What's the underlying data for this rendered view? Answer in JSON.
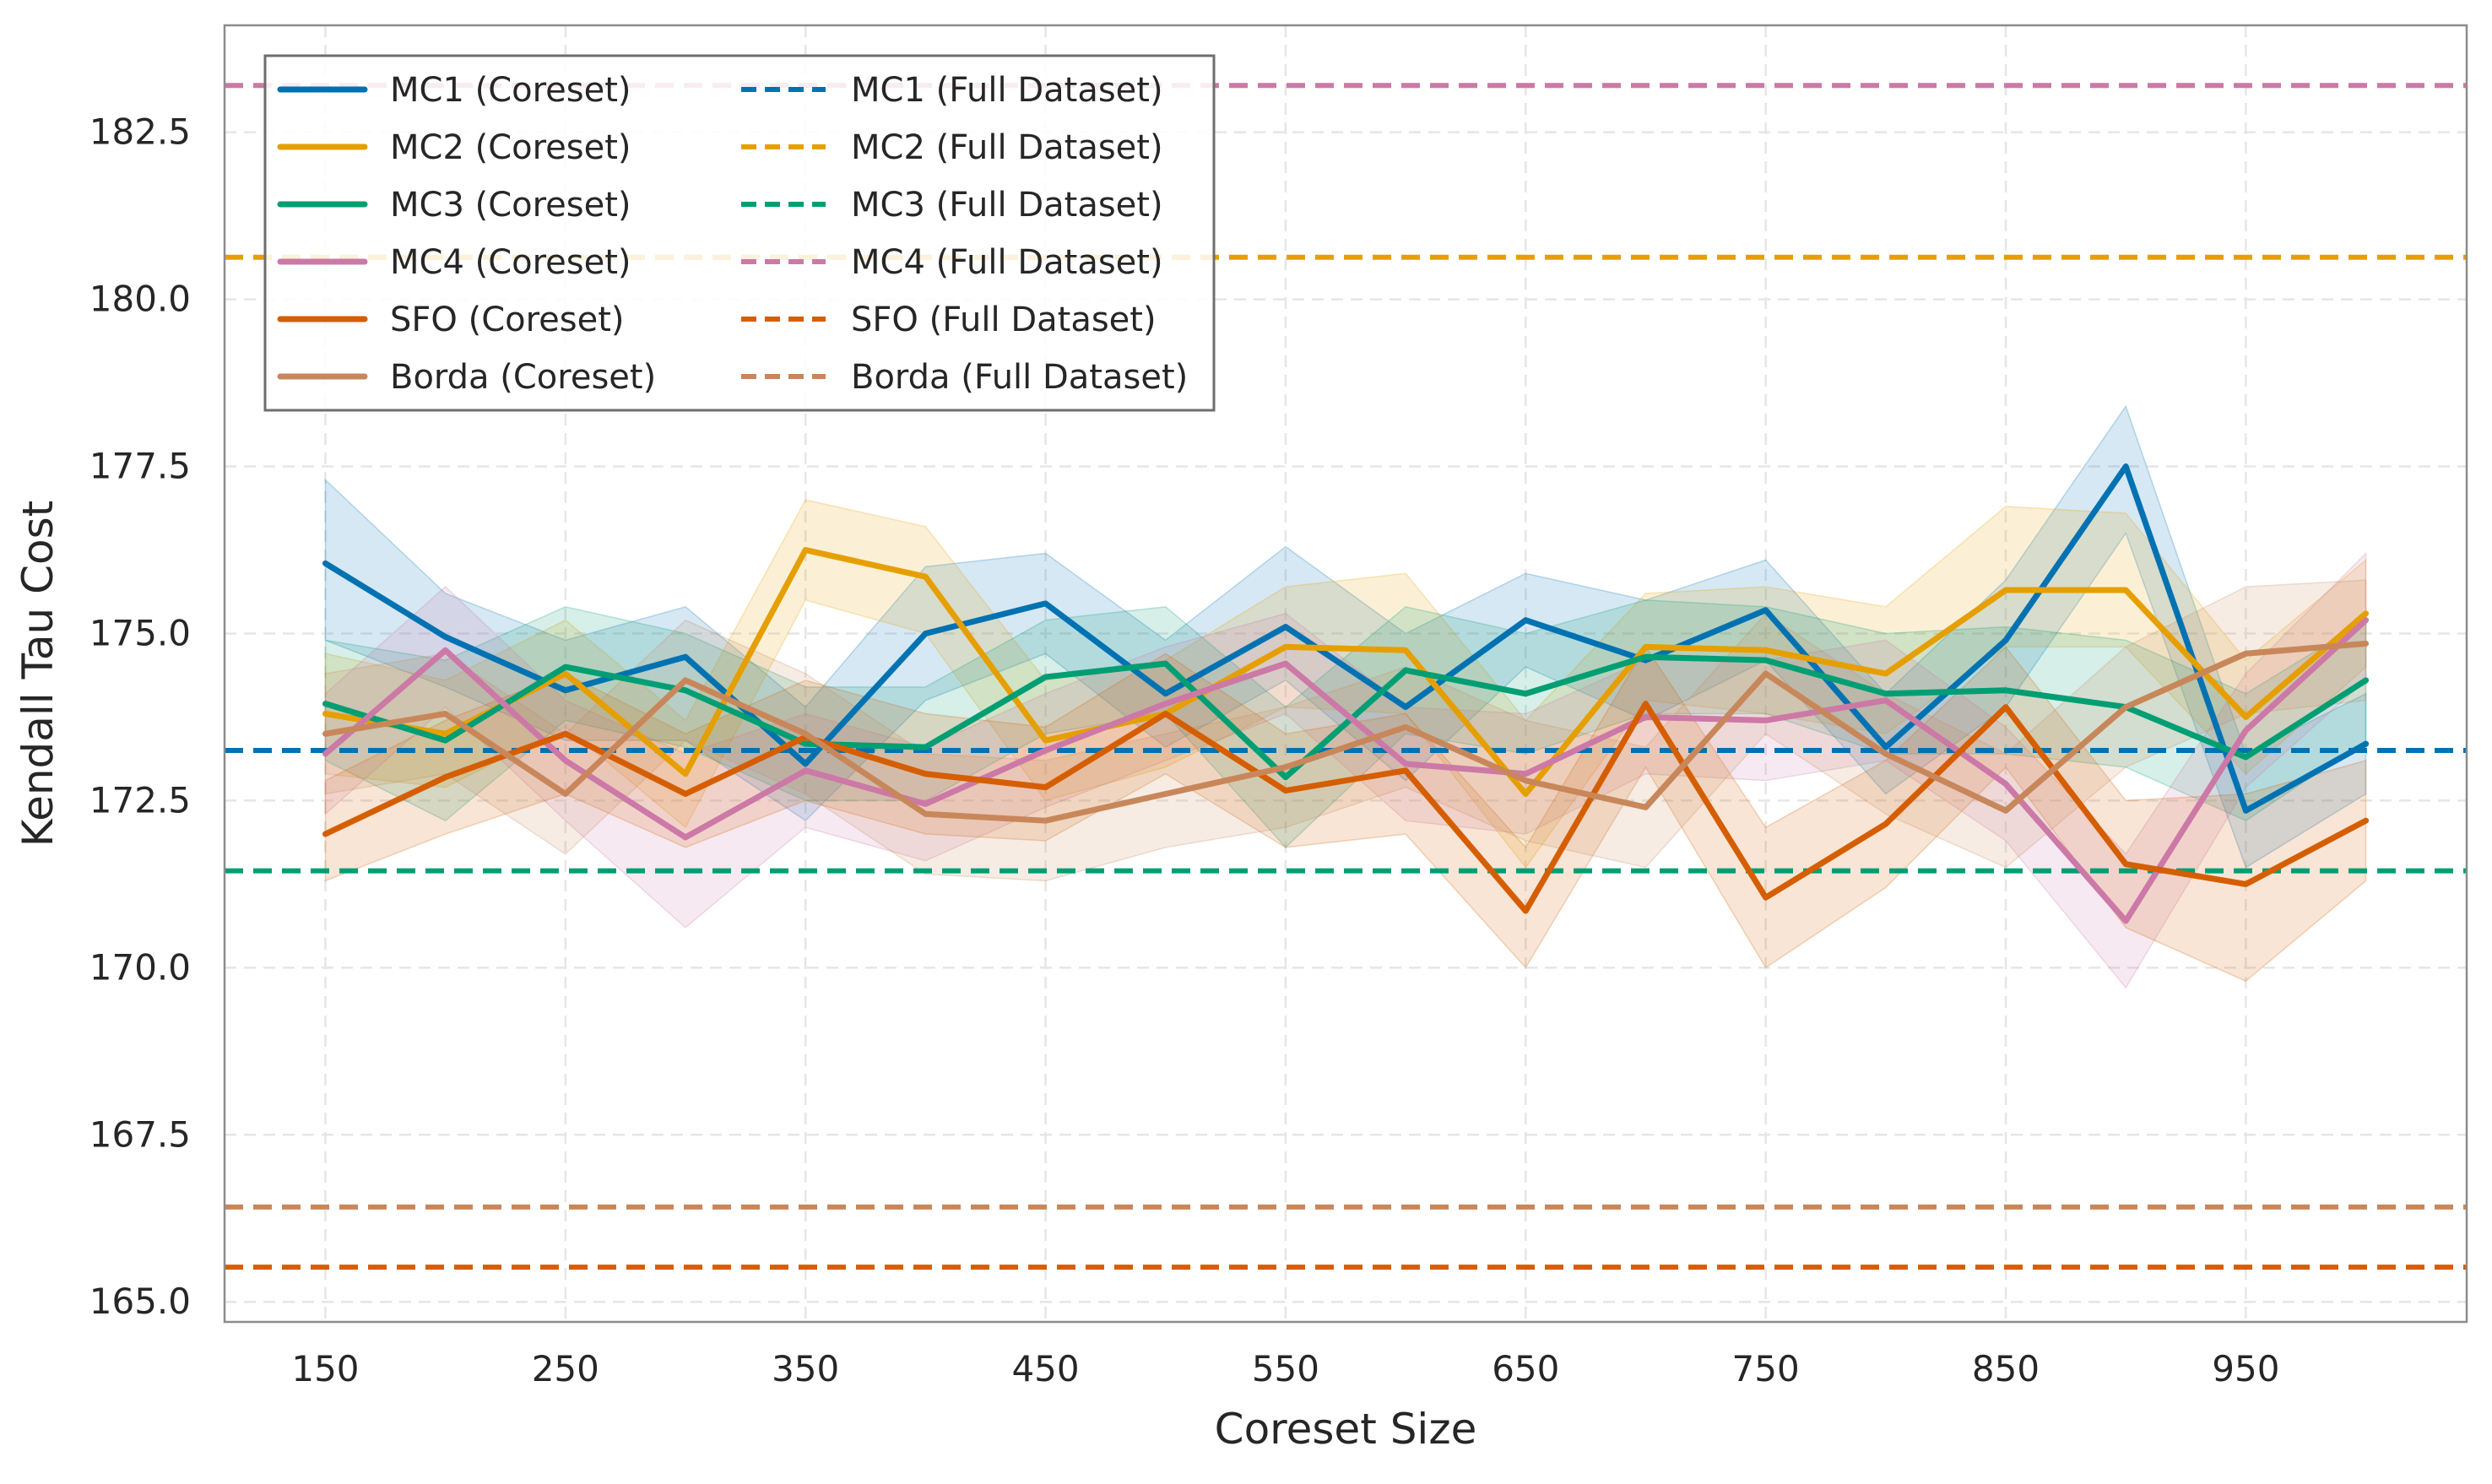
{
  "chart_data": {
    "type": "line",
    "title": "",
    "xlabel": "Coreset Size",
    "ylabel": "Kendall Tau Cost",
    "xlim": [
      108,
      1042
    ],
    "ylim": [
      164.7,
      184.1
    ],
    "xticks": [
      "150",
      "250",
      "350",
      "450",
      "550",
      "650",
      "750",
      "850",
      "950"
    ],
    "yticks": [
      "165.0",
      "167.5",
      "170.0",
      "172.5",
      "175.0",
      "177.5",
      "180.0",
      "182.5"
    ],
    "grid": true,
    "legend_position": "top-left",
    "x": [
      150,
      200,
      250,
      300,
      350,
      400,
      450,
      500,
      550,
      600,
      650,
      700,
      750,
      800,
      850,
      900,
      950,
      1000
    ],
    "series": [
      {
        "name": "MC1 (Coreset)",
        "color": "#0072b2",
        "values": [
          176.05,
          174.95,
          174.15,
          174.65,
          173.05,
          175.0,
          175.45,
          174.1,
          175.1,
          173.9,
          175.2,
          174.6,
          175.35,
          173.3,
          174.9,
          177.5,
          172.35,
          173.35
        ],
        "lower": [
          174.9,
          174.2,
          173.4,
          173.4,
          172.2,
          174.0,
          174.7,
          173.3,
          174.3,
          172.8,
          174.5,
          173.7,
          174.6,
          172.6,
          173.9,
          176.5,
          171.5,
          172.6
        ],
        "upper": [
          177.3,
          175.6,
          174.9,
          175.4,
          173.9,
          176.0,
          176.2,
          174.9,
          176.3,
          175.0,
          175.9,
          175.5,
          176.1,
          174.1,
          175.8,
          178.4,
          173.2,
          174.1
        ]
      },
      {
        "name": "MC2 (Coreset)",
        "color": "#e69f00",
        "values": [
          173.8,
          173.5,
          174.4,
          172.9,
          176.25,
          175.85,
          173.4,
          173.8,
          174.8,
          174.75,
          172.6,
          174.8,
          174.75,
          174.4,
          175.65,
          175.65,
          173.75,
          175.3
        ],
        "lower": [
          172.9,
          172.7,
          173.6,
          172.1,
          175.5,
          175.0,
          172.5,
          173.0,
          173.9,
          173.8,
          171.5,
          174.0,
          173.8,
          173.5,
          174.8,
          174.8,
          172.9,
          174.5
        ],
        "upper": [
          174.7,
          174.3,
          175.2,
          173.7,
          177.0,
          176.6,
          174.3,
          174.6,
          175.7,
          175.9,
          173.7,
          175.6,
          175.7,
          175.4,
          176.9,
          176.8,
          174.6,
          176.1
        ]
      },
      {
        "name": "MC3 (Coreset)",
        "color": "#009e73",
        "values": [
          173.95,
          173.4,
          174.5,
          174.15,
          173.35,
          173.3,
          174.35,
          174.55,
          172.85,
          174.45,
          174.1,
          174.65,
          174.6,
          174.1,
          174.15,
          173.9,
          173.15,
          174.3
        ],
        "lower": [
          173.1,
          172.2,
          173.7,
          173.3,
          172.5,
          172.5,
          173.5,
          173.8,
          171.8,
          173.5,
          173.2,
          173.8,
          173.8,
          173.2,
          173.2,
          173.0,
          172.2,
          173.4
        ],
        "upper": [
          174.9,
          174.6,
          175.4,
          175.0,
          174.2,
          174.2,
          175.2,
          175.4,
          173.9,
          175.4,
          175.0,
          175.5,
          175.4,
          175.0,
          175.1,
          174.9,
          174.1,
          175.2
        ]
      },
      {
        "name": "MC4 (Coreset)",
        "color": "#cc79a7",
        "values": [
          173.2,
          174.75,
          173.1,
          171.95,
          172.95,
          172.45,
          173.25,
          173.95,
          174.55,
          173.05,
          172.9,
          173.75,
          173.7,
          174.0,
          172.75,
          170.7,
          173.55,
          175.2
        ],
        "lower": [
          172.3,
          173.9,
          172.2,
          170.6,
          172.1,
          171.6,
          172.4,
          173.1,
          173.8,
          172.2,
          172.0,
          172.9,
          172.8,
          173.1,
          171.9,
          169.7,
          172.7,
          174.3
        ],
        "upper": [
          174.1,
          175.7,
          174.0,
          173.2,
          173.8,
          173.3,
          174.1,
          174.8,
          175.3,
          173.9,
          173.8,
          174.6,
          174.6,
          174.9,
          173.6,
          171.7,
          174.4,
          176.2
        ]
      },
      {
        "name": "SFO (Coreset)",
        "color": "#d55e00",
        "values": [
          172.0,
          172.85,
          173.5,
          172.6,
          173.45,
          172.9,
          172.7,
          173.8,
          172.65,
          172.95,
          170.85,
          173.95,
          171.05,
          172.15,
          173.9,
          171.55,
          171.25,
          172.2
        ],
        "lower": [
          171.3,
          172.0,
          172.6,
          171.8,
          172.5,
          172.0,
          171.9,
          172.9,
          171.8,
          172.0,
          170.0,
          173.0,
          170.0,
          171.2,
          173.0,
          170.6,
          169.8,
          171.3
        ],
        "upper": [
          172.8,
          173.7,
          174.4,
          173.5,
          174.3,
          173.8,
          173.6,
          174.7,
          173.5,
          173.8,
          171.8,
          174.8,
          172.1,
          173.1,
          174.8,
          172.5,
          172.6,
          173.1
        ]
      },
      {
        "name": "Borda (Coreset)",
        "color": "#c8875a",
        "values": [
          173.5,
          173.8,
          172.6,
          174.3,
          173.5,
          172.3,
          172.2,
          172.6,
          173.0,
          173.6,
          172.8,
          172.4,
          174.4,
          173.2,
          172.35,
          173.9,
          174.7,
          174.85
        ],
        "lower": [
          172.6,
          172.9,
          171.7,
          173.4,
          172.6,
          171.4,
          171.3,
          171.8,
          172.1,
          172.7,
          171.9,
          171.5,
          173.5,
          172.3,
          171.5,
          173.0,
          173.8,
          174.0
        ],
        "upper": [
          174.4,
          174.7,
          173.5,
          175.2,
          174.4,
          173.2,
          173.1,
          173.5,
          173.9,
          174.5,
          173.7,
          173.3,
          175.3,
          174.1,
          173.2,
          174.8,
          175.7,
          175.8
        ]
      }
    ],
    "reference_lines": [
      {
        "name": "MC1 (Full Dataset)",
        "color": "#0072b2",
        "value": 173.25
      },
      {
        "name": "MC2 (Full Dataset)",
        "color": "#e69f00",
        "value": 180.63
      },
      {
        "name": "MC3 (Full Dataset)",
        "color": "#009e73",
        "value": 171.45
      },
      {
        "name": "MC4 (Full Dataset)",
        "color": "#cc79a7",
        "value": 183.2
      },
      {
        "name": "SFO (Full Dataset)",
        "color": "#d55e00",
        "value": 165.52
      },
      {
        "name": "Borda (Full Dataset)",
        "color": "#c8875a",
        "value": 166.42
      }
    ]
  }
}
